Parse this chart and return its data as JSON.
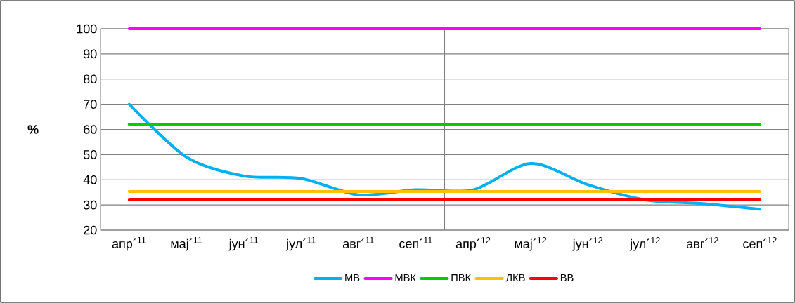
{
  "chart_data": {
    "type": "line",
    "ylabel": "%",
    "categories": [
      "апр´$^{11}$",
      "мај´$^{11}$",
      "јун´$^{11}$",
      "јул´$^{11}$",
      "авг´$^{11}$",
      "сеп´$^{11}$",
      "апр´$^{12}$",
      "мај´$^{12}$",
      "јун´$^{12}$",
      "јул´$^{12}$",
      "авг´$^{12}$",
      "сеп´$^{12}$"
    ],
    "series": [
      {
        "name": "МВ",
        "color": "#00b0f0",
        "values": [
          70,
          49,
          41.5,
          40.5,
          34,
          36,
          36,
          46.5,
          38,
          32,
          30.5,
          28.3
        ]
      },
      {
        "name": "МВК",
        "color": "#ff00ff",
        "values": [
          100,
          100,
          100,
          100,
          100,
          100,
          100,
          100,
          100,
          100,
          100,
          100
        ]
      },
      {
        "name": "ПВК",
        "color": "#00cc00",
        "values": [
          62,
          62,
          62,
          62,
          62,
          62,
          62,
          62,
          62,
          62,
          62,
          62
        ]
      },
      {
        "name": "ЛКВ",
        "color": "#ffc000",
        "values": [
          35.3,
          35.3,
          35.3,
          35.3,
          35.3,
          35.3,
          35.3,
          35.3,
          35.3,
          35.3,
          35.3,
          35.3
        ]
      },
      {
        "name": "ВВ",
        "color": "#ff0000",
        "values": [
          32,
          32,
          32,
          32,
          32,
          32,
          32,
          32,
          32,
          32,
          32,
          32
        ]
      }
    ],
    "ylim": [
      20,
      100
    ],
    "yticks": [
      20,
      30,
      40,
      50,
      60,
      70,
      80,
      90,
      100
    ],
    "grid": "y",
    "legend": "bottom",
    "marker": "none",
    "line_style": "solid"
  }
}
